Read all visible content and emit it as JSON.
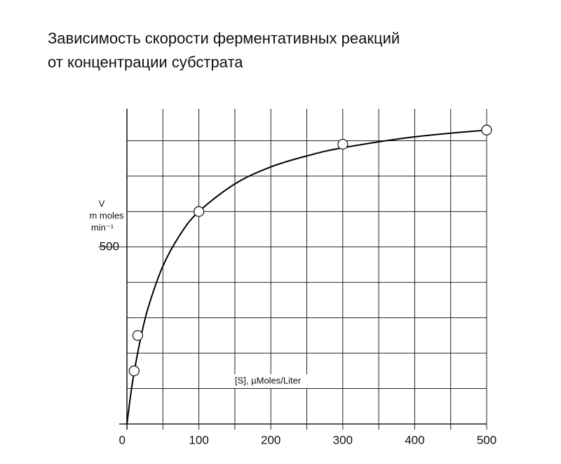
{
  "chart_data": {
    "type": "scatter",
    "title": [
      "Зависимость скорости ферментативных реакций",
      "от концентрации субстрата"
    ],
    "ylabel": [
      "V",
      "m moles",
      "min⁻¹"
    ],
    "xlabel": "[S], µMoles/Liter",
    "xlim": [
      0,
      500
    ],
    "ylim": [
      0,
      900
    ],
    "xticks": [
      0,
      100,
      200,
      300,
      400,
      500
    ],
    "yticks": [
      500
    ],
    "xgrid": [
      0,
      50,
      100,
      150,
      200,
      250,
      300,
      350,
      400,
      450,
      500
    ],
    "ygrid": [
      0,
      100,
      200,
      300,
      400,
      500,
      600,
      700,
      800
    ],
    "grid": true,
    "series": [
      {
        "style": "line",
        "color": "#000000",
        "x": [
          0,
          5,
          10,
          20,
          30,
          50,
          75,
          100,
          150,
          200,
          250,
          300,
          400,
          500
        ],
        "values": [
          0,
          79,
          146,
          251,
          332,
          446,
          538,
          600,
          678,
          726,
          757,
          780,
          811,
          830
        ]
      },
      {
        "style": "marker",
        "color": "#ffffff",
        "x": [
          10,
          15,
          100,
          300,
          500
        ],
        "values": [
          150,
          250,
          600,
          790,
          830
        ]
      }
    ]
  }
}
